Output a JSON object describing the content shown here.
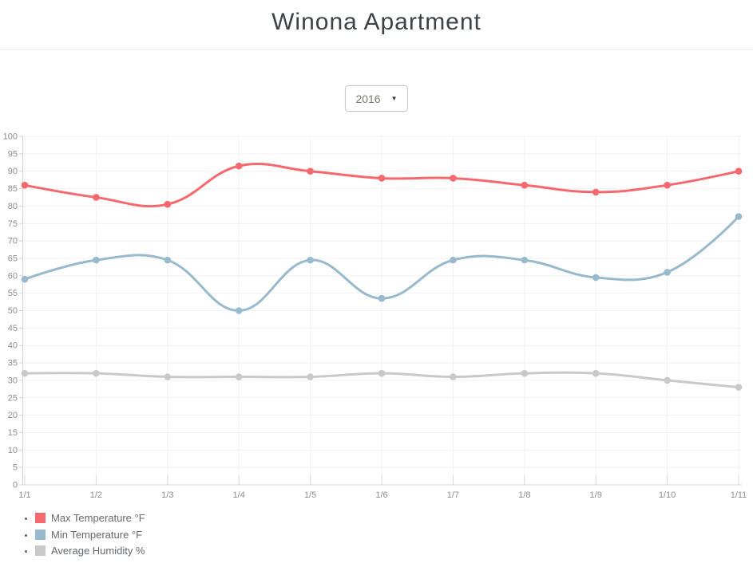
{
  "page": {
    "title": "Winona Apartment"
  },
  "controls": {
    "year_select": {
      "value": "2016",
      "caret": "▼"
    }
  },
  "chart_data": {
    "type": "line",
    "title": "",
    "x": [
      "1/1",
      "1/2",
      "1/3",
      "1/4",
      "1/5",
      "1/6",
      "1/7",
      "1/8",
      "1/9",
      "1/10",
      "1/11"
    ],
    "series": [
      {
        "name": "Max Temperature °F",
        "color": "#f5696e",
        "values": [
          86,
          82.5,
          80.5,
          91.5,
          90,
          88,
          88,
          86,
          84,
          86,
          90
        ]
      },
      {
        "name": "Min Temperature °F",
        "color": "#99b9cc",
        "values": [
          59,
          64.5,
          64.5,
          50,
          64.5,
          53.5,
          64.5,
          64.5,
          59.5,
          61,
          77
        ]
      },
      {
        "name": "Average Humidity %",
        "color": "#c9c9c9",
        "values": [
          32,
          32,
          31,
          31,
          31,
          32,
          31,
          32,
          32,
          30,
          28
        ]
      }
    ],
    "ylim": [
      0,
      100
    ],
    "ytick_step": 5,
    "grid": true,
    "curve": "smooth",
    "legend_position": "bottom-left",
    "xlabel": "",
    "ylabel": ""
  }
}
